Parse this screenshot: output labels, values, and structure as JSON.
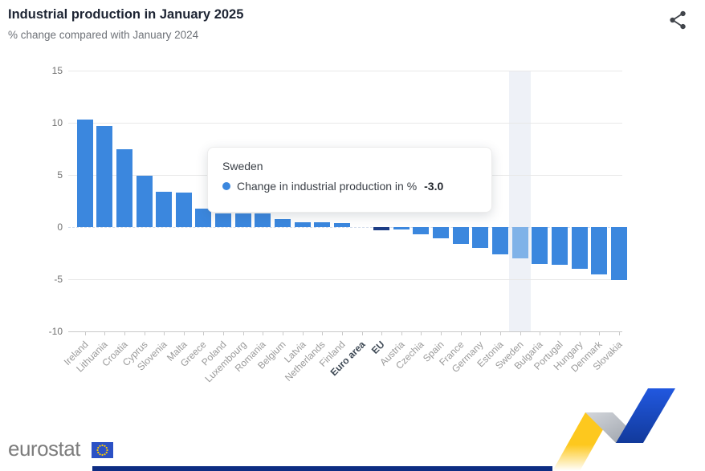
{
  "header": {
    "title": "Industrial production in January 2025",
    "subtitle": "% change compared with January 2024"
  },
  "tooltip": {
    "country": "Sweden",
    "series_label": "Change in industrial production in %",
    "value": "-3.0"
  },
  "footer": {
    "logo_text": "eurostat"
  },
  "colors": {
    "bar": "#3b87de",
    "aggregate_bar": "#1c3d85",
    "highlight_bar": "#7fb2e8",
    "highlight_band": "#eef1f7",
    "grid": "#e8e8e8",
    "zero_line": "#d4ddeb",
    "axis": "#c9c9c9",
    "title": "#1d2433",
    "subtitle": "#6e7278",
    "tick_label": "#707070",
    "category_label": "#9a9a9a",
    "aggregate_label": "#3f4a56",
    "logo_gray": "#7d7d7d",
    "flag_blue": "#2b51c5",
    "star_yellow": "#ffcc00",
    "strip_navy": "#0d2d83",
    "ribbon_yellow": "#fdc81e",
    "ribbon_gray": "#b2b6bd",
    "ribbon_blue": "#1d4ed8"
  },
  "chart_data": {
    "type": "bar",
    "title": "Industrial production in January 2025",
    "subtitle": "% change compared with January 2024",
    "series_name": "Change in industrial production in %",
    "categories": [
      "Ireland",
      "Lithuania",
      "Croatia",
      "Cyprus",
      "Slovenia",
      "Malta",
      "Greece",
      "Poland",
      "Luxembourg",
      "Romania",
      "Belgium",
      "Latvia",
      "Netherlands",
      "Finland",
      "Euro area",
      "EU",
      "Austria",
      "Czechia",
      "Spain",
      "France",
      "Germany",
      "Estonia",
      "Sweden",
      "Bulgaria",
      "Portugal",
      "Hungary",
      "Denmark",
      "Slovakia"
    ],
    "values": [
      10.3,
      9.7,
      7.5,
      4.9,
      3.4,
      3.3,
      1.8,
      1.3,
      1.3,
      1.3,
      0.8,
      0.5,
      0.5,
      0.4,
      0.0,
      -0.3,
      -0.2,
      -0.7,
      -1.1,
      -1.6,
      -2.0,
      -2.6,
      -3.0,
      -3.5,
      -3.6,
      -4.0,
      -4.5,
      -5.1
    ],
    "ylim": [
      -10,
      15
    ],
    "yticks": [
      15,
      10,
      5,
      0,
      -5,
      -10
    ],
    "grid": true,
    "legend": "none",
    "aggregate_categories": [
      "Euro area",
      "EU"
    ],
    "highlighted_category": "Sweden"
  }
}
